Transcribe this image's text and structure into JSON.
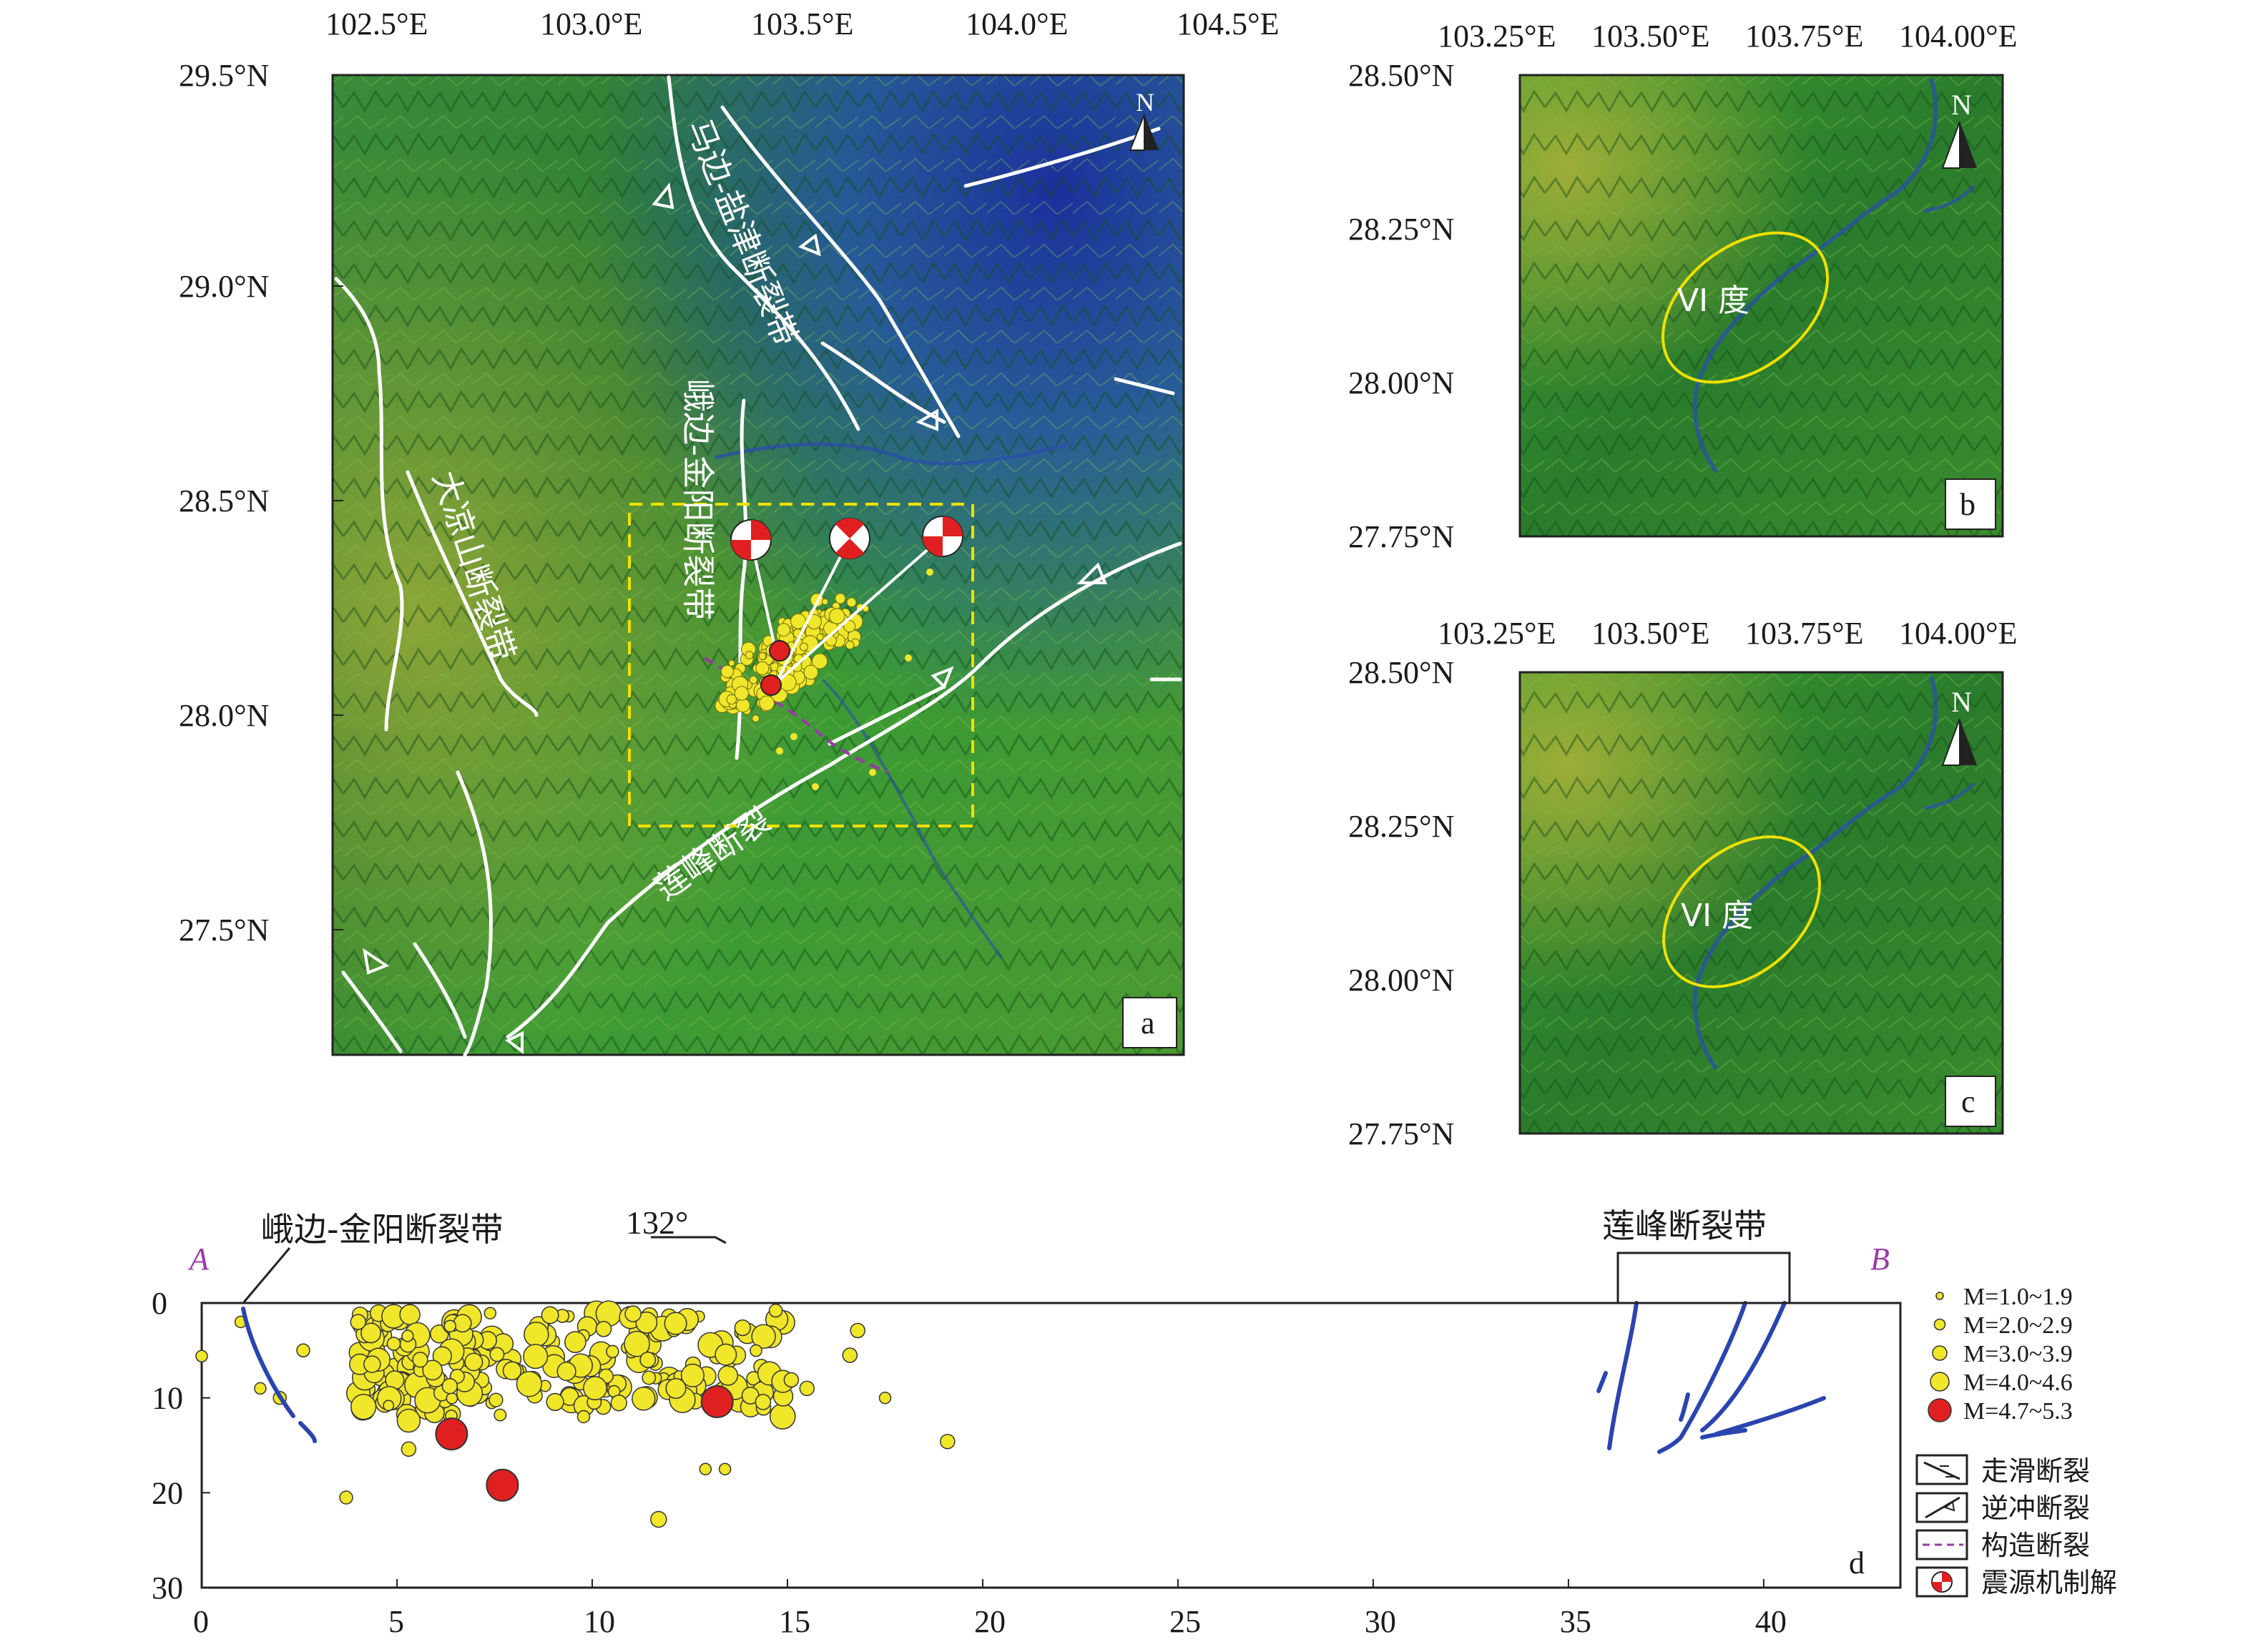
{
  "panel_a": {
    "letter": "a",
    "lon_ticks": [
      "102.5°E",
      "103.0°E",
      "103.5°E",
      "104.0°E",
      "104.5°E"
    ],
    "lat_ticks": [
      "29.5°N",
      "29.0°N",
      "28.5°N",
      "28.0°N",
      "27.5°N"
    ],
    "fault_labels": {
      "mabian_yanjin": "马边-盐津断裂带",
      "ebian_jinyang": "峨边-金阳断裂带",
      "daliangshan": "大凉山断裂带",
      "lianfeng": "莲峰断裂"
    },
    "north_label": "N"
  },
  "panel_b": {
    "letter": "b",
    "lon_ticks": [
      "103.25°E",
      "103.50°E",
      "103.75°E",
      "104.00°E"
    ],
    "lat_ticks": [
      "28.50°N",
      "28.25°N",
      "28.00°N",
      "27.75°N"
    ],
    "intensity_label": "VI 度",
    "north_label": "N"
  },
  "panel_c": {
    "letter": "c",
    "lon_ticks": [
      "103.25°E",
      "103.50°E",
      "103.75°E",
      "104.00°E"
    ],
    "lat_ticks": [
      "28.50°N",
      "28.25°N",
      "28.00°N",
      "27.75°N"
    ],
    "intensity_label": "VI 度",
    "north_label": "N"
  },
  "panel_d": {
    "letter": "d",
    "label_A": "A",
    "label_B": "B",
    "fault_left": "峨边-金阳断裂带",
    "fault_right": "莲峰断裂带",
    "azimuth": "132°",
    "x_ticks": [
      "0",
      "5",
      "10",
      "15",
      "20",
      "25",
      "30",
      "35",
      "40"
    ],
    "y_ticks": [
      "0",
      "10",
      "20",
      "30"
    ]
  },
  "legend": {
    "mag": [
      {
        "label": "M=1.0~1.9",
        "color": "#f0e62a"
      },
      {
        "label": "M=2.0~2.9",
        "color": "#f0e62a"
      },
      {
        "label": "M=3.0~3.9",
        "color": "#f0e62a"
      },
      {
        "label": "M=4.0~4.6",
        "color": "#f0e62a"
      },
      {
        "label": "M=4.7~5.3",
        "color": "#e02020"
      }
    ],
    "symbols": [
      {
        "label": "走滑断裂",
        "icon": "strike-slip-fault-icon"
      },
      {
        "label": "逆冲断裂",
        "icon": "thrust-fault-icon"
      },
      {
        "label": "构造断裂",
        "icon": "tectonic-fault-icon"
      },
      {
        "label": "震源机制解",
        "icon": "focal-mechanism-icon"
      }
    ]
  },
  "colors": {
    "terrain_low": "#1a3a8c",
    "terrain_mid": "#2e8a2a",
    "terrain_high": "#c8c23a",
    "fault": "#ffffff",
    "section_fault": "#2a44b0",
    "quake": "#f0e62a",
    "quake_large": "#e02020",
    "boxline": "#f0e000",
    "profile": "#9a3aa8"
  }
}
